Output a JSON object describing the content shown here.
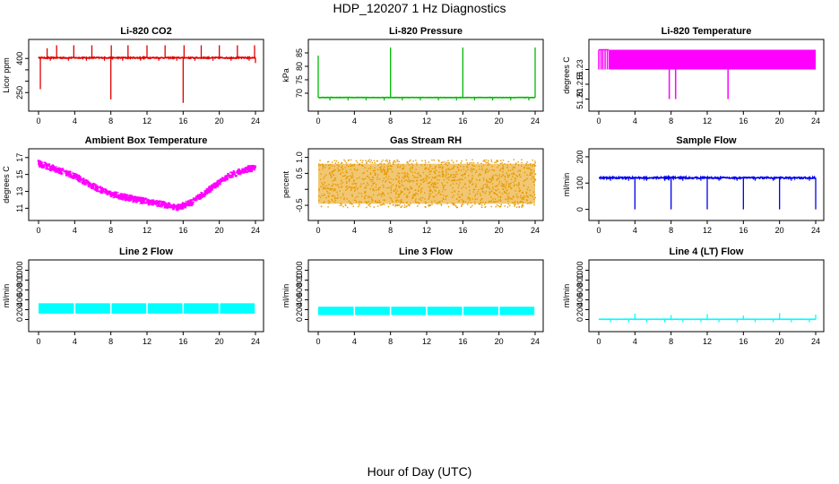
{
  "page": {
    "title": "HDP_120207  1 Hz Diagnostics",
    "xlabel": "Hour of Day (UTC)"
  },
  "chart_data": [
    {
      "type": "line",
      "title": "Li-820 CO2",
      "ylabel": "Licor ppm",
      "color": "#e00000",
      "xlim": [
        0,
        24
      ],
      "xticks": [
        0,
        4,
        8,
        12,
        16,
        20,
        24
      ],
      "ylim": [
        200,
        460
      ],
      "yticks": [
        250,
        300,
        350,
        400
      ],
      "ytick_labels": [
        "250",
        "",
        "",
        "400"
      ],
      "series": [
        {
          "name": "CO2",
          "baseline": 403,
          "noise": 5,
          "spikes": [
            {
              "x": 0.2,
              "y": 265
            },
            {
              "x": 0.95,
              "y": 445
            },
            {
              "x": 2.0,
              "y": 458
            },
            {
              "x": 3.9,
              "y": 458
            },
            {
              "x": 5.9,
              "y": 458
            },
            {
              "x": 8.0,
              "y": 220
            },
            {
              "x": 8.05,
              "y": 458
            },
            {
              "x": 9.9,
              "y": 458
            },
            {
              "x": 12.0,
              "y": 458
            },
            {
              "x": 14.0,
              "y": 458
            },
            {
              "x": 16.0,
              "y": 205
            },
            {
              "x": 16.1,
              "y": 458
            },
            {
              "x": 18.0,
              "y": 458
            },
            {
              "x": 20.0,
              "y": 458
            },
            {
              "x": 22.0,
              "y": 458
            },
            {
              "x": 23.9,
              "y": 458
            },
            {
              "x": 24.0,
              "y": 380
            }
          ]
        }
      ]
    },
    {
      "type": "line",
      "title": "Li-820 Pressure",
      "ylabel": "kPa",
      "color": "#00bb00",
      "xlim": [
        0,
        24
      ],
      "xticks": [
        0,
        4,
        8,
        12,
        16,
        20,
        24
      ],
      "ylim": [
        66,
        88
      ],
      "yticks": [
        70,
        75,
        80,
        85
      ],
      "ytick_labels": [
        "70",
        "75",
        "80",
        "85"
      ],
      "series": [
        {
          "name": "Pressure",
          "baseline": 68.4,
          "noise": 0.12,
          "spikes": [
            {
              "x": 0.0,
              "y": 84
            },
            {
              "x": 8.0,
              "y": 87
            },
            {
              "x": 16.0,
              "y": 87
            },
            {
              "x": 24.0,
              "y": 87
            }
          ]
        }
      ]
    },
    {
      "type": "line",
      "title": "Li-820 Temperature",
      "ylabel": "degrees C",
      "color": "#ff00ff",
      "xlim": [
        0,
        24
      ],
      "xticks": [
        0,
        4,
        8,
        12,
        16,
        20,
        24
      ],
      "ylim": [
        51.195,
        51.255
      ],
      "yticks": [
        51.2,
        51.215,
        51.23
      ],
      "ytick_labels": [
        "51.20",
        "51.215",
        "51.23"
      ],
      "series": [
        {
          "name": "Temperature",
          "high": 51.25,
          "low": 51.23,
          "start_bars": [
            0.0,
            0.25,
            0.45,
            0.7,
            0.95
          ],
          "dips": [
            {
              "x": 7.8,
              "y": 51.2
            },
            {
              "x": 8.5,
              "y": 51.2
            },
            {
              "x": 14.3,
              "y": 51.2
            }
          ]
        }
      ]
    },
    {
      "type": "line",
      "title": "Ambient Box Temperature",
      "ylabel": "degrees C",
      "color": "#ff00ff",
      "xlim": [
        0,
        24
      ],
      "xticks": [
        0,
        4,
        8,
        12,
        16,
        20,
        24
      ],
      "ylim": [
        10.4,
        17.4
      ],
      "yticks": [
        11,
        13,
        15,
        17
      ],
      "ytick_labels": [
        "11",
        "13",
        "15",
        "17"
      ],
      "series": [
        {
          "name": "Ambient",
          "x": [
            0,
            2,
            4,
            6,
            8,
            10,
            12,
            14,
            15.5,
            17,
            19,
            21,
            23,
            24
          ],
          "y": [
            16.3,
            15.6,
            14.8,
            13.6,
            12.7,
            12.2,
            11.8,
            11.4,
            11.1,
            11.7,
            13.3,
            14.8,
            15.6,
            15.8
          ],
          "noise": 0.45
        }
      ]
    },
    {
      "type": "scatter",
      "title": "Gas Stream RH",
      "ylabel": "percent",
      "color": "#e69900",
      "xlim": [
        0,
        24
      ],
      "xticks": [
        0,
        4,
        8,
        12,
        16,
        20,
        24
      ],
      "ylim": [
        -0.75,
        1.1
      ],
      "yticks": [
        -0.5,
        0,
        0.5,
        1.0
      ],
      "ytick_labels": [
        "-0.5",
        "",
        "0.5",
        "1.0"
      ],
      "series": [
        {
          "name": "RH",
          "center": 0.25,
          "min": -0.55,
          "max": 0.95
        }
      ]
    },
    {
      "type": "line",
      "title": "Sample Flow",
      "ylabel": "ml/min",
      "color": "#0000ee",
      "xlim": [
        0,
        24
      ],
      "xticks": [
        0,
        4,
        8,
        12,
        16,
        20,
        24
      ],
      "ylim": [
        -15,
        210
      ],
      "yticks": [
        0,
        100,
        200
      ],
      "ytick_labels": [
        "0",
        "100",
        "200"
      ],
      "series": [
        {
          "name": "Sample",
          "baseline": 120,
          "noise": 6,
          "spikes": [
            {
              "x": 4.0,
              "y": 0
            },
            {
              "x": 8.0,
              "y": 0
            },
            {
              "x": 12.0,
              "y": 0
            },
            {
              "x": 16.0,
              "y": 0
            },
            {
              "x": 20.0,
              "y": 0
            },
            {
              "x": 24.0,
              "y": 0
            }
          ]
        }
      ]
    },
    {
      "type": "line",
      "title": "Line 2 Flow",
      "ylabel": "ml/min",
      "color": "#00ffff",
      "xlim": [
        0,
        24
      ],
      "xticks": [
        0,
        4,
        8,
        12,
        16,
        20,
        24
      ],
      "ylim": [
        -100,
        1100
      ],
      "yticks": [
        0,
        200,
        400,
        600,
        800,
        1000
      ],
      "ytick_labels": [
        "0",
        "200",
        "400",
        "600",
        "800",
        "1000"
      ],
      "series": [
        {
          "name": "Line 2",
          "low": 120,
          "high": 330,
          "gaps": [
            4.0,
            8.0,
            12.0,
            16.0,
            20.0
          ]
        }
      ]
    },
    {
      "type": "line",
      "title": "Line 3 Flow",
      "ylabel": "ml/min",
      "color": "#00ffff",
      "xlim": [
        0,
        24
      ],
      "xticks": [
        0,
        4,
        8,
        12,
        16,
        20,
        24
      ],
      "ylim": [
        -100,
        1100
      ],
      "yticks": [
        0,
        200,
        400,
        600,
        800,
        1000
      ],
      "ytick_labels": [
        "0",
        "200",
        "400",
        "600",
        "800",
        "1000"
      ],
      "series": [
        {
          "name": "Line 3",
          "low": 90,
          "high": 260,
          "gaps": [
            4.0,
            8.0,
            12.0,
            16.0,
            20.0
          ]
        }
      ]
    },
    {
      "type": "line",
      "title": "Line 4 (LT) Flow",
      "ylabel": "ml/min",
      "color": "#00ffff",
      "xlim": [
        0,
        24
      ],
      "xticks": [
        0,
        4,
        8,
        12,
        16,
        20,
        24
      ],
      "ylim": [
        -100,
        1100
      ],
      "yticks": [
        0,
        200,
        400,
        600,
        800,
        1000
      ],
      "ytick_labels": [
        "0",
        "200",
        "400",
        "600",
        "800",
        "1000"
      ],
      "series": [
        {
          "name": "Line 4",
          "baseline": 5,
          "noise": 3,
          "spikes": [
            {
              "x": 4.0,
              "y": 120
            },
            {
              "x": 8.0,
              "y": 90
            },
            {
              "x": 12.0,
              "y": 110
            },
            {
              "x": 16.0,
              "y": 80
            },
            {
              "x": 20.0,
              "y": 130
            },
            {
              "x": 24.0,
              "y": 100
            }
          ]
        }
      ]
    }
  ]
}
